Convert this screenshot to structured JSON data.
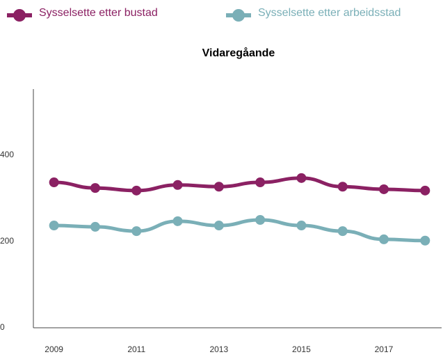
{
  "chart_data": {
    "type": "line",
    "title": "Vidaregåande",
    "x": [
      2009,
      2010,
      2011,
      2012,
      2013,
      2014,
      2015,
      2016,
      2017,
      2018
    ],
    "series": [
      {
        "name": "Sysselsette etter bustad",
        "color": "#8b2163",
        "values": [
          337,
          324,
          318,
          331,
          327,
          337,
          347,
          327,
          321,
          318
        ]
      },
      {
        "name": "Sysselsette etter arbeidsstad",
        "color": "#7aafb7",
        "values": [
          237,
          234,
          224,
          247,
          237,
          250,
          237,
          224,
          205,
          202
        ]
      }
    ],
    "xlim": [
      2008.5,
      2018.4
    ],
    "xticks": [
      2009,
      2011,
      2013,
      2015,
      2017
    ],
    "ylim": [
      0,
      550
    ],
    "yticks": [
      0,
      200,
      400
    ],
    "legend": "top"
  }
}
